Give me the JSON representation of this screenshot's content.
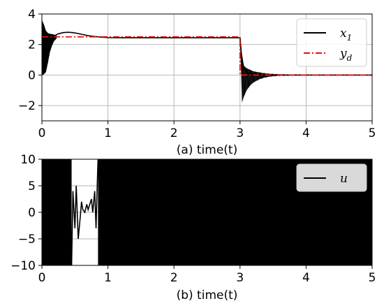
{
  "chart_data": [
    {
      "id": "a",
      "type": "line",
      "xlabel": "(a)   time(t)",
      "xlim": [
        0,
        5
      ],
      "ylim": [
        -3,
        4
      ],
      "xticks": [
        0,
        1,
        2,
        3,
        4,
        5
      ],
      "yticks": [
        -2,
        0,
        2,
        4
      ],
      "grid": true,
      "legend_position": "top-right",
      "series": [
        {
          "name": "x_1",
          "label_text": "x",
          "label_sub": "1",
          "color": "#000000",
          "style": "solid",
          "x": [
            0,
            0.02,
            0.05,
            0.08,
            0.12,
            0.18,
            0.25,
            0.32,
            0.4,
            0.47,
            0.55,
            0.62,
            0.7,
            0.8,
            0.9,
            1.0,
            1.2,
            1.5,
            2.0,
            2.5,
            2.95,
            3.0,
            3.02,
            3.05,
            3.08,
            3.12,
            3.18,
            3.25,
            3.35,
            3.45,
            3.6,
            3.8,
            4.0,
            4.5,
            5.0
          ],
          "y": [
            0,
            0.9,
            1.6,
            2.0,
            2.3,
            2.55,
            2.7,
            2.78,
            2.8,
            2.78,
            2.72,
            2.65,
            2.58,
            2.52,
            2.48,
            2.45,
            2.44,
            2.44,
            2.44,
            2.44,
            2.44,
            2.44,
            1.4,
            0.6,
            0.3,
            0.15,
            0.05,
            0.02,
            0,
            0,
            0,
            0,
            0,
            0,
            0
          ],
          "oscillation_bands": [
            {
              "x": [
                0,
                0.03,
                0.06,
                0.09,
                0.12,
                0.15,
                0.18,
                0.22
              ],
              "upper": [
                3.6,
                3.3,
                2.9,
                2.75,
                2.7,
                2.68,
                2.65,
                2.6
              ],
              "lower": [
                0,
                0.05,
                0.2,
                0.8,
                1.5,
                1.9,
                2.2,
                2.4
              ]
            },
            {
              "x": [
                3.0,
                3.03,
                3.06,
                3.1,
                3.15,
                3.2,
                3.28,
                3.36,
                3.45,
                3.55,
                3.7,
                3.9,
                4.2,
                5.0
              ],
              "upper": [
                2.5,
                1.0,
                0.6,
                0.45,
                0.35,
                0.25,
                0.18,
                0.12,
                0.08,
                0.06,
                0.04,
                0.03,
                0.02,
                0.02
              ],
              "lower": [
                2.4,
                -1.8,
                -1.4,
                -1.0,
                -0.7,
                -0.5,
                -0.3,
                -0.18,
                -0.1,
                -0.06,
                -0.04,
                -0.03,
                -0.02,
                -0.02
              ]
            }
          ]
        },
        {
          "name": "y_d",
          "label_text": "y",
          "label_sub": "d",
          "color": "#e8100c",
          "style": "dashdot",
          "x": [
            0,
            3,
            3,
            5
          ],
          "y": [
            2.5,
            2.5,
            0,
            0
          ]
        }
      ]
    },
    {
      "id": "b",
      "type": "line",
      "xlabel": "(b)   time(t)",
      "xlim": [
        0,
        5
      ],
      "ylim": [
        -10,
        10
      ],
      "xticks": [
        0,
        1,
        2,
        3,
        4,
        5
      ],
      "yticks": [
        -10,
        -5,
        0,
        5,
        10
      ],
      "grid": true,
      "legend_position": "top-right",
      "series": [
        {
          "name": "u",
          "label_text": "u",
          "label_sub": "",
          "color": "#000000",
          "style": "solid",
          "saturated_intervals": [
            [
              0,
              0.45
            ],
            [
              0.85,
              5
            ]
          ],
          "saturation": [
            -10,
            10
          ],
          "x": [
            0.45,
            0.47,
            0.5,
            0.52,
            0.55,
            0.58,
            0.6,
            0.62,
            0.65,
            0.68,
            0.7,
            0.72,
            0.75,
            0.77,
            0.8,
            0.82,
            0.84,
            0.85
          ],
          "y": [
            -10,
            4,
            -3,
            5,
            -5,
            -1,
            2,
            0.5,
            0,
            1.5,
            0.5,
            1.3,
            2.5,
            0,
            4,
            -3,
            6,
            10
          ]
        }
      ]
    }
  ]
}
